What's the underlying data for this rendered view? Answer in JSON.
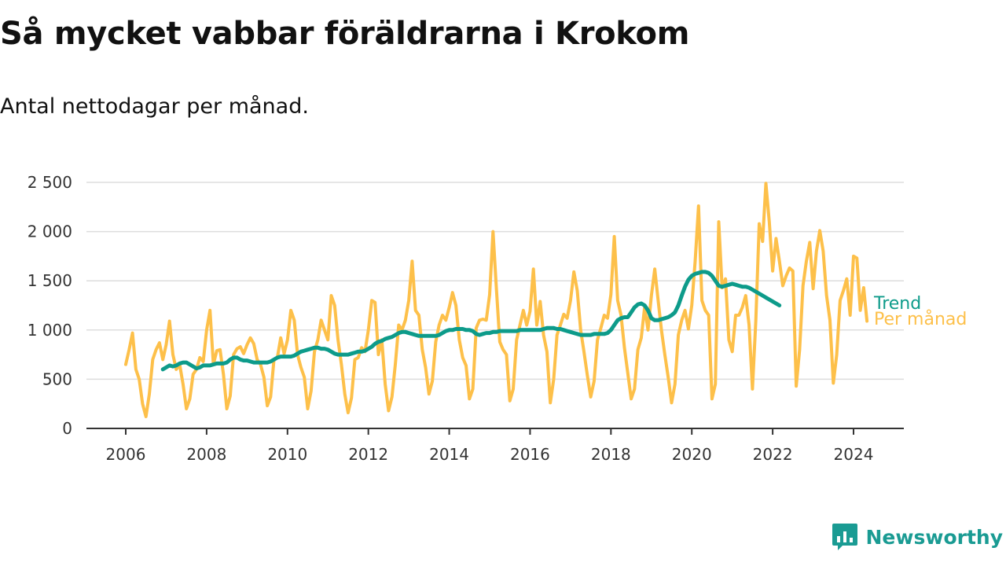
{
  "title": "Så mycket vabbar föräldrarna i Krokom",
  "subtitle": "Antal nettodagar per månad.",
  "brand": {
    "name": "Newsworthy",
    "icon": "newsworthy-logo-icon",
    "color": "#1a9b93"
  },
  "colors": {
    "monthly": "#fdc04a",
    "trend": "#0d9b8a",
    "grid": "#dddddd",
    "axis": "#333333"
  },
  "chart_data": {
    "type": "line",
    "title": "",
    "xlabel": "",
    "ylabel": "",
    "ylim": [
      0,
      2500
    ],
    "xlim": [
      2006,
      2024.75
    ],
    "yticks": [
      0,
      500,
      1000,
      1500,
      2000,
      2500
    ],
    "ytick_labels": [
      "0",
      "500",
      "1 000",
      "1 500",
      "2 000",
      "2 500"
    ],
    "xticks": [
      2006,
      2008,
      2010,
      2012,
      2014,
      2016,
      2018,
      2020,
      2022,
      2024
    ],
    "xtick_labels": [
      "2006",
      "2008",
      "2010",
      "2012",
      "2014",
      "2016",
      "2018",
      "2020",
      "2022",
      "2024"
    ],
    "grid": "horizontal",
    "legend": "inline at line ends",
    "series": [
      {
        "name": "Per månad",
        "x_start": "2006-01",
        "frequency": "monthly",
        "values": [
          650,
          800,
          970,
          600,
          500,
          250,
          120,
          350,
          700,
          800,
          870,
          700,
          850,
          1090,
          750,
          600,
          650,
          450,
          200,
          300,
          550,
          600,
          720,
          680,
          1000,
          1200,
          650,
          790,
          800,
          550,
          200,
          330,
          750,
          810,
          830,
          760,
          850,
          920,
          860,
          700,
          650,
          520,
          230,
          320,
          700,
          720,
          920,
          760,
          900,
          1200,
          1100,
          750,
          620,
          520,
          200,
          380,
          780,
          900,
          1100,
          1000,
          900,
          1350,
          1250,
          900,
          650,
          350,
          160,
          310,
          700,
          720,
          820,
          780,
          1000,
          1300,
          1280,
          750,
          900,
          450,
          180,
          320,
          650,
          1050,
          1000,
          1100,
          1300,
          1700,
          1200,
          1150,
          800,
          620,
          350,
          480,
          880,
          1050,
          1150,
          1100,
          1230,
          1380,
          1250,
          900,
          720,
          640,
          300,
          400,
          1020,
          1100,
          1110,
          1100,
          1360,
          2000,
          1420,
          880,
          800,
          750,
          280,
          400,
          900,
          1050,
          1200,
          1050,
          1190,
          1620,
          1050,
          1290,
          950,
          780,
          260,
          500,
          950,
          1050,
          1160,
          1120,
          1300,
          1590,
          1400,
          1000,
          780,
          540,
          320,
          480,
          900,
          1020,
          1150,
          1120,
          1360,
          1950,
          1300,
          1150,
          820,
          560,
          300,
          400,
          800,
          920,
          1230,
          1000,
          1350,
          1620,
          1300,
          1000,
          750,
          520,
          260,
          450,
          950,
          1100,
          1200,
          1010,
          1250,
          1700,
          2260,
          1300,
          1200,
          1150,
          300,
          450,
          2100,
          1430,
          1520,
          900,
          780,
          1150,
          1150,
          1230,
          1350,
          1050,
          400,
          1100,
          2080,
          1900,
          2490,
          2100,
          1600,
          1930,
          1700,
          1450,
          1550,
          1630,
          1600,
          430,
          800,
          1450,
          1700,
          1890,
          1420,
          1800,
          2010,
          1800,
          1350,
          1100,
          460,
          750,
          1300,
          1400,
          1520,
          1150,
          1750,
          1730,
          1200,
          1430,
          1090
        ]
      },
      {
        "name": "Trend",
        "x_start": "2006-12",
        "frequency": "monthly",
        "values": [
          600,
          620,
          640,
          630,
          640,
          660,
          670,
          670,
          650,
          630,
          610,
          620,
          640,
          640,
          640,
          650,
          660,
          660,
          660,
          670,
          700,
          720,
          720,
          700,
          690,
          690,
          680,
          670,
          670,
          670,
          670,
          670,
          680,
          700,
          720,
          730,
          730,
          730,
          730,
          740,
          760,
          780,
          790,
          800,
          810,
          820,
          820,
          810,
          810,
          800,
          780,
          760,
          750,
          750,
          750,
          750,
          760,
          770,
          780,
          780,
          790,
          810,
          830,
          860,
          880,
          890,
          910,
          920,
          930,
          950,
          970,
          980,
          980,
          970,
          960,
          950,
          940,
          940,
          940,
          940,
          940,
          940,
          950,
          970,
          990,
          1000,
          1000,
          1010,
          1010,
          1010,
          1000,
          1000,
          990,
          960,
          950,
          960,
          970,
          970,
          980,
          980,
          990,
          990,
          990,
          990,
          990,
          990,
          1000,
          1000,
          1000,
          1000,
          1000,
          1000,
          1000,
          1010,
          1020,
          1020,
          1020,
          1010,
          1010,
          1000,
          990,
          980,
          970,
          960,
          950,
          950,
          950,
          950,
          960,
          960,
          960,
          960,
          970,
          1000,
          1050,
          1100,
          1120,
          1130,
          1130,
          1180,
          1230,
          1260,
          1270,
          1250,
          1200,
          1120,
          1100,
          1100,
          1110,
          1120,
          1130,
          1150,
          1180,
          1250,
          1350,
          1440,
          1510,
          1550,
          1570,
          1580,
          1590,
          1590,
          1580,
          1550,
          1500,
          1450,
          1440,
          1450,
          1460,
          1470,
          1460,
          1450,
          1440,
          1440,
          1430,
          1410,
          1390,
          1370,
          1350,
          1330,
          1310,
          1290,
          1270,
          1250
        ]
      }
    ]
  }
}
